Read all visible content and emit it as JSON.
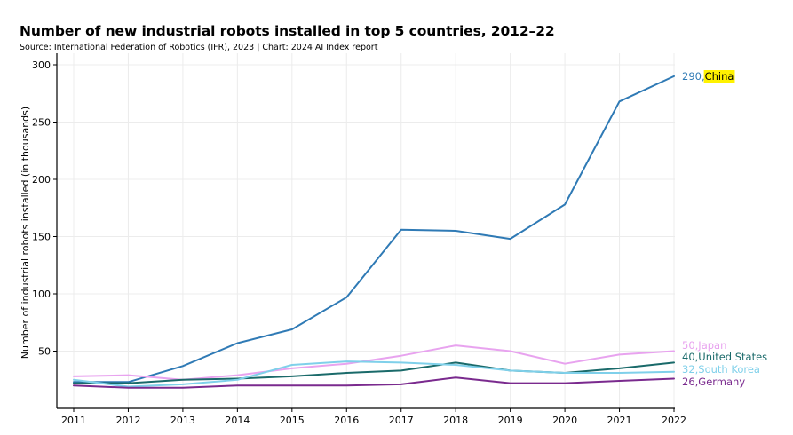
{
  "header": {
    "title": "Number of new industrial robots installed in top 5 countries, 2012–22",
    "source": "Source: International Federation of Robotics (IFR), 2023 | Chart: 2024 AI Index report"
  },
  "chart_data": {
    "type": "line",
    "title": "Number of new industrial robots installed in top 5 countries, 2012–22",
    "xlabel": "",
    "ylabel": "Number of industrial robots installed (in thousands)",
    "x": [
      2011,
      2012,
      2013,
      2014,
      2015,
      2016,
      2017,
      2018,
      2019,
      2020,
      2021,
      2022
    ],
    "x_tick_labels": [
      "2011",
      "2012",
      "2013",
      "2014",
      "2015",
      "2016",
      "2017",
      "2018",
      "2019",
      "2020",
      "2021",
      "2022"
    ],
    "yticks": [
      50,
      100,
      150,
      200,
      250,
      300
    ],
    "y_tick_labels": [
      "50",
      "100",
      "150",
      "200",
      "250",
      "300"
    ],
    "xlim": [
      2011,
      2022
    ],
    "ylim": [
      0,
      300
    ],
    "grid": true,
    "series": [
      {
        "name": "China",
        "color": "#2f7ab5",
        "values": [
          23,
          23,
          37,
          57,
          69,
          97,
          156,
          155,
          148,
          178,
          268,
          290
        ],
        "end_value_label": "290",
        "highlight_name": true,
        "highlight_color": "#fff200"
      },
      {
        "name": "Japan",
        "color": "#e8a3ef",
        "values": [
          28,
          29,
          25,
          29,
          35,
          39,
          46,
          55,
          50,
          39,
          47,
          50
        ],
        "end_value_label": "50"
      },
      {
        "name": "United States",
        "color": "#1a6a6a",
        "values": [
          22,
          22,
          25,
          26,
          28,
          31,
          33,
          40,
          33,
          31,
          35,
          40
        ],
        "end_value_label": "40"
      },
      {
        "name": "South Korea",
        "color": "#7fd0ea",
        "values": [
          25,
          19,
          21,
          25,
          38,
          41,
          40,
          38,
          33,
          31,
          31,
          32
        ],
        "end_value_label": "32"
      },
      {
        "name": "Germany",
        "color": "#7a2a8e",
        "values": [
          20,
          18,
          18,
          20,
          20,
          20,
          21,
          27,
          22,
          22,
          24,
          26
        ],
        "end_value_label": "26"
      }
    ]
  }
}
